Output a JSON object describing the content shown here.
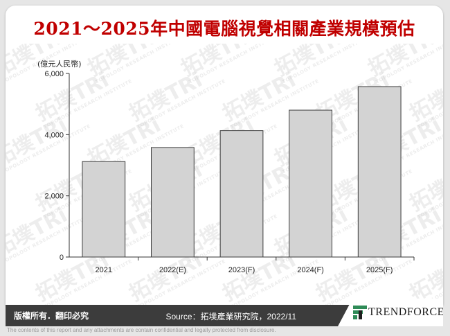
{
  "title": "2021～2025年中國電腦視覺相關產業規模預估",
  "watermark": {
    "text": "拓墣TRi",
    "subtext": "TOPOLOGY RESEARCH INSTITUTE"
  },
  "chart_data": {
    "type": "bar",
    "ylabel": "(億元人民幣)",
    "xlabel": "",
    "categories": [
      "2021",
      "2022(E)",
      "2023(F)",
      "2024(F)",
      "2025(F)"
    ],
    "values": [
      3120,
      3580,
      4130,
      4800,
      5570
    ],
    "ylim": [
      0,
      6000
    ],
    "yticks": [
      0,
      2000,
      4000,
      6000
    ],
    "ytick_labels": [
      "0",
      "2,000",
      "4,000",
      "6,000"
    ],
    "grid": false,
    "legend": "none",
    "bar_color": "#d3d3d3",
    "bar_edge_color": "#3a3a3a"
  },
  "footer": {
    "rights": "版權所有．翻印必究",
    "source": "Source：拓墣產業研究院，2022/11",
    "brand": "TRENDFORCE",
    "background": "#3c3c3c"
  },
  "disclaimer": "The contents of this report and any attachments are contain confidential and legally protected from disclosure.",
  "colors": {
    "title": "#c00000",
    "logo_green": "#2e8b57"
  }
}
